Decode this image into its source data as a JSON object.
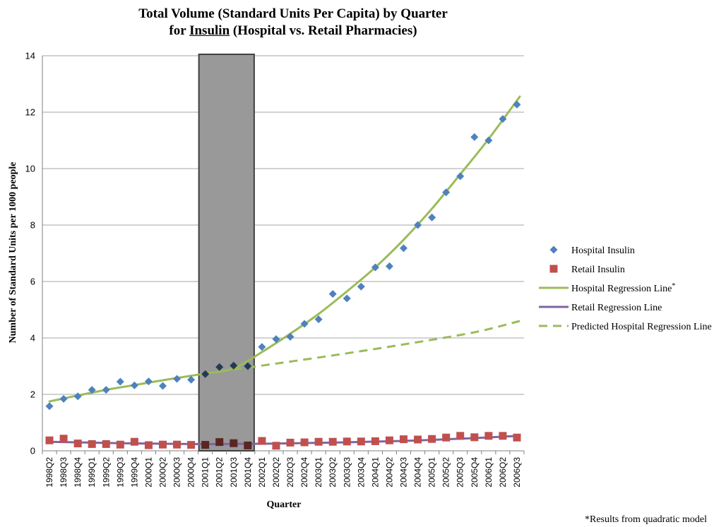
{
  "chart_data": {
    "type": "scatter",
    "title_line1": "Total Volume (Standard Units Per Capita) by Quarter",
    "title_line2_prefix": "for ",
    "title_line2_underlined": "Insulin",
    "title_line2_suffix": " (Hospital vs. Retail Pharmacies)",
    "xlabel": "Quarter",
    "ylabel": "Number of Standard Units per 1000 people",
    "ylim": [
      0,
      14
    ],
    "yticks": [
      0,
      2,
      4,
      6,
      8,
      10,
      12,
      14
    ],
    "grid": true,
    "legend_position": "right",
    "categories": [
      "1998Q2",
      "1998Q3",
      "1998Q4",
      "1999Q1",
      "1999Q2",
      "1999Q3",
      "1999Q4",
      "2000Q1",
      "2000Q2",
      "2000Q3",
      "2000Q4",
      "2001Q1",
      "2001Q2",
      "2001Q3",
      "2001Q4",
      "2002Q1",
      "2002Q2",
      "2002Q3",
      "2002Q4",
      "2003Q1",
      "2003Q2",
      "2003Q3",
      "2003Q4",
      "2004Q1",
      "2004Q2",
      "2004Q3",
      "2004Q4",
      "2005Q1",
      "2005Q2",
      "2005Q3",
      "2005Q4",
      "2006Q1",
      "2006Q2",
      "2006Q3"
    ],
    "shaded_region": {
      "from": "2001Q1",
      "to": "2001Q4"
    },
    "series": [
      {
        "name": "Hospital Insulin",
        "kind": "scatter",
        "marker": "diamond",
        "color": "#4f81bd",
        "values": [
          1.58,
          1.84,
          1.93,
          2.16,
          2.16,
          2.45,
          2.32,
          2.46,
          2.3,
          2.55,
          2.52,
          2.72,
          2.97,
          3.02,
          3.0,
          3.68,
          3.96,
          4.04,
          4.5,
          4.66,
          5.56,
          5.4,
          5.82,
          6.5,
          6.54,
          7.18,
          8.0,
          8.27,
          9.16,
          9.73,
          11.12,
          11.0,
          11.76,
          12.27
        ]
      },
      {
        "name": "Retail Insulin",
        "kind": "scatter",
        "marker": "square",
        "color": "#c0504d",
        "values": [
          0.37,
          0.43,
          0.26,
          0.24,
          0.24,
          0.22,
          0.32,
          0.2,
          0.22,
          0.22,
          0.21,
          0.21,
          0.31,
          0.27,
          0.19,
          0.35,
          0.18,
          0.29,
          0.3,
          0.32,
          0.32,
          0.33,
          0.33,
          0.34,
          0.37,
          0.41,
          0.4,
          0.42,
          0.47,
          0.53,
          0.48,
          0.53,
          0.53,
          0.47
        ]
      },
      {
        "name": "Hospital Regression Line",
        "name_superscript": "*",
        "kind": "line",
        "style": "solid",
        "color": "#9bbb59",
        "x": [
          0,
          2,
          4,
          6,
          8,
          10,
          11,
          13,
          15,
          17,
          19,
          21,
          23,
          25,
          27,
          29,
          31,
          33.2
        ],
        "values": [
          1.75,
          1.96,
          2.16,
          2.33,
          2.5,
          2.66,
          2.74,
          2.92,
          3.5,
          4.15,
          4.85,
          5.65,
          6.5,
          7.48,
          8.58,
          9.8,
          11.05,
          12.55
        ]
      },
      {
        "name": "Retail Regression Line",
        "kind": "line",
        "style": "solid",
        "color": "#8064a2",
        "x": [
          0,
          5,
          10,
          15,
          20,
          25,
          30,
          33.2
        ],
        "values": [
          0.32,
          0.27,
          0.24,
          0.25,
          0.29,
          0.35,
          0.45,
          0.53
        ]
      },
      {
        "name": "Predicted Hospital Regression Line",
        "kind": "line",
        "style": "dashed",
        "color": "#9bbb59",
        "x": [
          11,
          15,
          20,
          25,
          30,
          33.2
        ],
        "values": [
          2.74,
          3.02,
          3.38,
          3.77,
          4.2,
          4.6
        ]
      }
    ]
  },
  "footnote": "*Results from quadratic model"
}
